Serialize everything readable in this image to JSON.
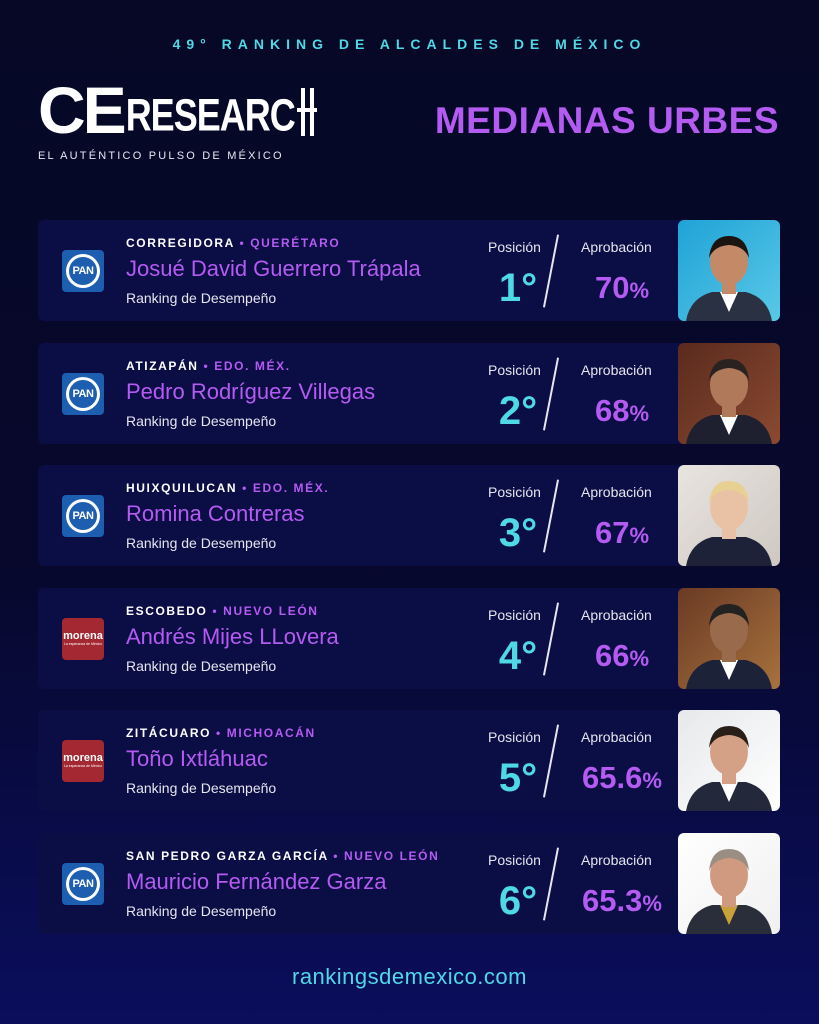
{
  "header": {
    "top_title": "49° RANKING DE ALCALDES DE MÉXICO",
    "logo_ce": "CE",
    "logo_research": "RESEARC",
    "logo_tagline": "EL AUTÉNTICO PULSO DE MÉXICO",
    "section_title": "MEDIANAS URBES"
  },
  "labels": {
    "position": "Posición",
    "approval": "Aprobación",
    "subtitle": "Ranking de Desempeño",
    "separator": "•",
    "percent": "%"
  },
  "entries": [
    {
      "city": "CORREGIDORA",
      "state": "QUERÉTARO",
      "name": "Josué David Guerrero Trápala",
      "position": "1°",
      "approval": "70",
      "party": "PAN",
      "party_logo": "pan-logo"
    },
    {
      "city": "ATIZAPÁN",
      "state": "EDO. MÉX.",
      "name": "Pedro Rodríguez Villegas",
      "position": "2°",
      "approval": "68",
      "party": "PAN",
      "party_logo": "pan-logo"
    },
    {
      "city": "HUIXQUILUCAN",
      "state": "EDO. MÉX.",
      "name": "Romina Contreras",
      "position": "3°",
      "approval": "67",
      "party": "PAN",
      "party_logo": "pan-logo"
    },
    {
      "city": "ESCOBEDO",
      "state": "NUEVO LEÓN",
      "name": "Andrés Mijes LLovera",
      "position": "4°",
      "approval": "66",
      "party": "morena",
      "party_sub": "La esperanza de México",
      "party_logo": "morena-logo"
    },
    {
      "city": "ZITÁCUARO",
      "state": "MICHOACÁN",
      "name": "Toño Ixtláhuac",
      "position": "5°",
      "approval": "65.6",
      "party": "morena",
      "party_sub": "La esperanza de México",
      "party_logo": "morena-logo"
    },
    {
      "city": "SAN PEDRO GARZA GARCÍA",
      "state": "NUEVO LEÓN",
      "name": "Mauricio Fernández Garza",
      "position": "6°",
      "approval": "65.3",
      "party": "PAN",
      "party_logo": "pan-logo"
    }
  ],
  "footer": {
    "url": "rankingsdemexico.com"
  },
  "colors": {
    "accent_cyan": "#4fd8e6",
    "accent_purple": "#b45bf2",
    "card_bg": "#0b0d45",
    "pan_blue": "#1d5eb0",
    "morena_red": "#a32831"
  }
}
